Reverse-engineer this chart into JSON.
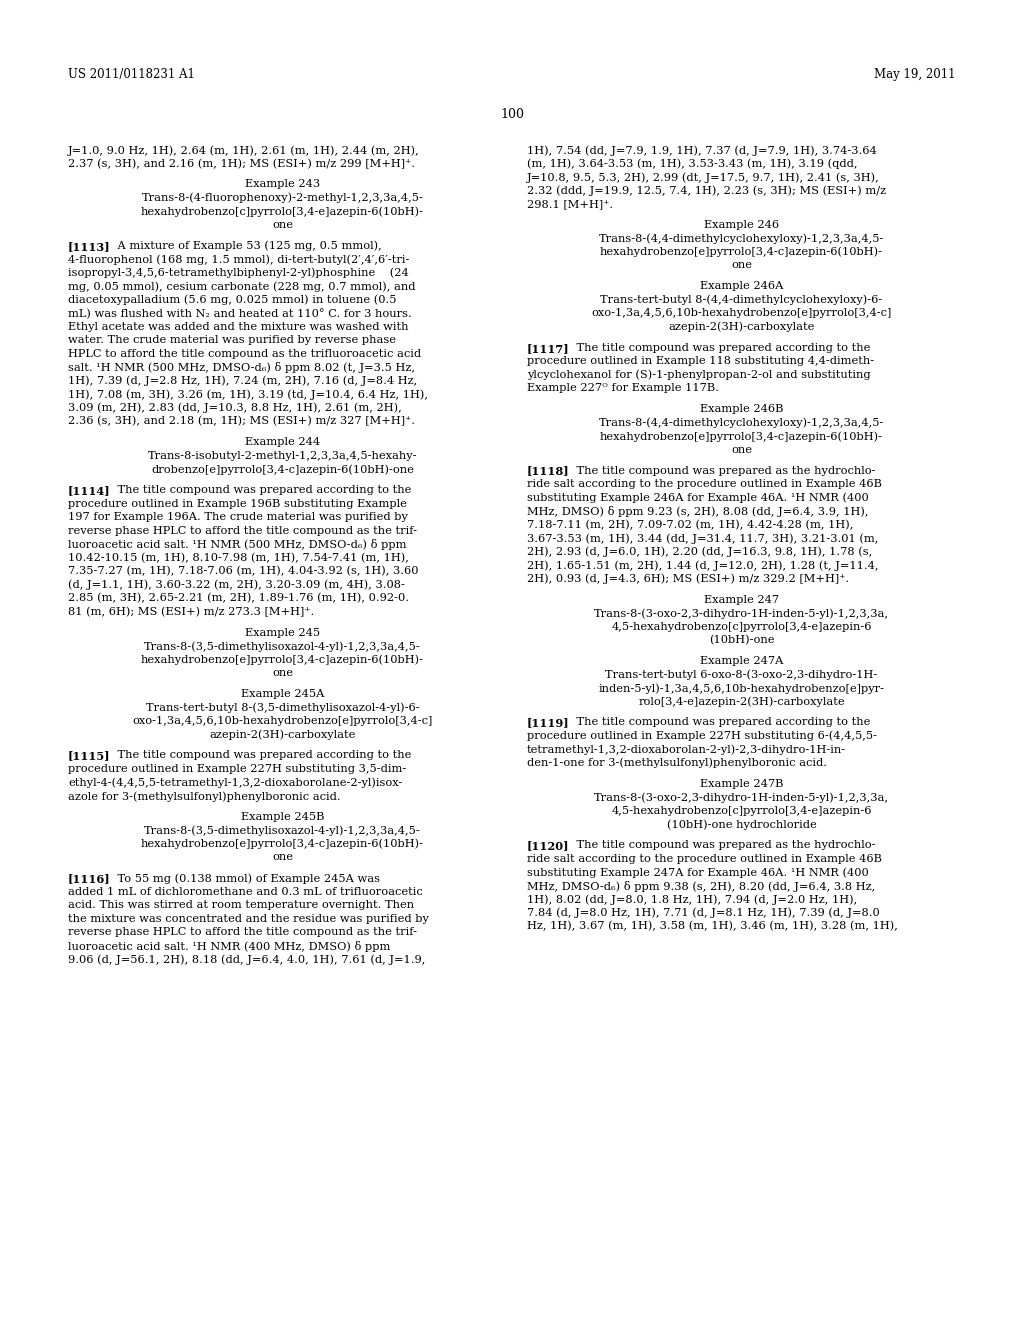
{
  "header_left": "US 2011/0118231 A1",
  "header_right": "May 19, 2011",
  "page_number": "100",
  "background_color": "#ffffff",
  "left_col_lines": [
    "J=1.0, 9.0 Hz, 1H), 2.64 (m, 1H), 2.61 (m, 1H), 2.44 (m, 2H),",
    "2.37 (s, 3H), and 2.16 (m, 1H); MS (ESI+) m/z 299 [M+H]⁺.",
    "",
    "~Example 243",
    "~Trans-8-(4-fluorophenoxy)-2-methyl-1,2,3,3a,4,5-",
    "~hexahydrobenzo[c]pyrrolo[3,4-e]azepin-6(10bH)-",
    "~one",
    "",
    "**[1113]**    A mixture of Example 53 (125 mg, 0.5 mmol),",
    "4-fluorophenol (168 mg, 1.5 mmol), di-tert-butyl(2′,4′,6′-tri-",
    "isopropyl-3,4,5,6-tetramethylbiphenyl-2-yl)phosphine    (24",
    "mg, 0.05 mmol), cesium carbonate (228 mg, 0.7 mmol), and",
    "diacetoxypalladium (5.6 mg, 0.025 mmol) in toluene (0.5",
    "mL) was flushed with N₂ and heated at 110° C. for 3 hours.",
    "Ethyl acetate was added and the mixture was washed with",
    "water. The crude material was purified by reverse phase",
    "HPLC to afford the title compound as the trifluoroacetic acid",
    "salt. ¹H NMR (500 MHz, DMSO-d₆) δ ppm 8.02 (t, J=3.5 Hz,",
    "1H), 7.39 (d, J=2.8 Hz, 1H), 7.24 (m, 2H), 7.16 (d, J=8.4 Hz,",
    "1H), 7.08 (m, 3H), 3.26 (m, 1H), 3.19 (td, J=10.4, 6.4 Hz, 1H),",
    "3.09 (m, 2H), 2.83 (dd, J=10.3, 8.8 Hz, 1H), 2.61 (m, 2H),",
    "2.36 (s, 3H), and 2.18 (m, 1H); MS (ESI+) m/z 327 [M+H]⁺.",
    "",
    "~Example 244",
    "~Trans-8-isobutyl-2-methyl-1,2,3,3a,4,5-hexahy-",
    "~drobenzo[e]pyrrolo[3,4-c]azepin-6(10bH)-one",
    "",
    "**[1114]**    The title compound was prepared according to the",
    "procedure outlined in Example 196B substituting Example",
    "197 for Example 196A. The crude material was purified by",
    "reverse phase HPLC to afford the title compound as the trif-",
    "luoroacetic acid salt. ¹H NMR (500 MHz, DMSO-d₆) δ ppm",
    "10.42-10.15 (m, 1H), 8.10-7.98 (m, 1H), 7.54-7.41 (m, 1H),",
    "7.35-7.27 (m, 1H), 7.18-7.06 (m, 1H), 4.04-3.92 (s, 1H), 3.60",
    "(d, J=1.1, 1H), 3.60-3.22 (m, 2H), 3.20-3.09 (m, 4H), 3.08-",
    "2.85 (m, 3H), 2.65-2.21 (m, 2H), 1.89-1.76 (m, 1H), 0.92-0.",
    "81 (m, 6H); MS (ESI+) m/z 273.3 [M+H]⁺.",
    "",
    "~Example 245",
    "~Trans-8-(3,5-dimethylisoxazol-4-yl)-1,2,3,3a,4,5-",
    "~hexahydrobenzo[e]pyrrolo[3,4-c]azepin-6(10bH)-",
    "~one",
    "",
    "~Example 245A",
    "~Trans-tert-butyl 8-(3,5-dimethylisoxazol-4-yl)-6-",
    "~oxo-1,3a,4,5,6,10b-hexahydrobenzo[e]pyrrolo[3,4-c]",
    "~azepin-2(3H)-carboxylate",
    "",
    "**[1115]**    The title compound was prepared according to the",
    "procedure outlined in Example 227H substituting 3,5-dim-",
    "ethyl-4-(4,4,5,5-tetramethyl-1,3,2-dioxaborolane-2-yl)isox-",
    "azole for 3-(methylsulfonyl)phenylboronic acid.",
    "",
    "~Example 245B",
    "~Trans-8-(3,5-dimethylisoxazol-4-yl)-1,2,3,3a,4,5-",
    "~hexahydrobenzo[e]pyrrolo[3,4-c]azepin-6(10bH)-",
    "~one",
    "",
    "**[1116]**    To 55 mg (0.138 mmol) of Example 245A was",
    "added 1 mL of dichloromethane and 0.3 mL of trifluoroacetic",
    "acid. This was stirred at room temperature overnight. Then",
    "the mixture was concentrated and the residue was purified by",
    "reverse phase HPLC to afford the title compound as the trif-",
    "luoroacetic acid salt. ¹H NMR (400 MHz, DMSO) δ ppm",
    "9.06 (d, J=56.1, 2H), 8.18 (dd, J=6.4, 4.0, 1H), 7.61 (d, J=1.9,"
  ],
  "right_col_lines": [
    "1H), 7.54 (dd, J=7.9, 1.9, 1H), 7.37 (d, J=7.9, 1H), 3.74-3.64",
    "(m, 1H), 3.64-3.53 (m, 1H), 3.53-3.43 (m, 1H), 3.19 (qdd,",
    "J=10.8, 9.5, 5.3, 2H), 2.99 (dt, J=17.5, 9.7, 1H), 2.41 (s, 3H),",
    "2.32 (ddd, J=19.9, 12.5, 7.4, 1H), 2.23 (s, 3H); MS (ESI+) m/z",
    "298.1 [M+H]⁺.",
    "",
    "~Example 246",
    "~Trans-8-(4,4-dimethylcyclohexyloxy)-1,2,3,3a,4,5-",
    "~hexahydrobenzo[e]pyrrolo[3,4-c]azepin-6(10bH)-",
    "~one",
    "",
    "~Example 246A",
    "~Trans-tert-butyl 8-(4,4-dimethylcyclohexyloxy)-6-",
    "~oxo-1,3a,4,5,6,10b-hexahydrobenzo[e]pyrrolo[3,4-c]",
    "~azepin-2(3H)-carboxylate",
    "",
    "**[1117]**    The title compound was prepared according to the",
    "procedure outlined in Example 118 substituting 4,4-dimeth-",
    "ylcyclohexanol for (S)-1-phenylpropan-2-ol and substituting",
    "Example 227ᴼ for Example 117B.",
    "",
    "~Example 246B",
    "~Trans-8-(4,4-dimethylcyclohexyloxy)-1,2,3,3a,4,5-",
    "~hexahydrobenzo[e]pyrrolo[3,4-c]azepin-6(10bH)-",
    "~one",
    "",
    "**[1118]**    The title compound was prepared as the hydrochlo-",
    "ride salt according to the procedure outlined in Example 46B",
    "substituting Example 246A for Example 46A. ¹H NMR (400",
    "MHz, DMSO) δ ppm 9.23 (s, 2H), 8.08 (dd, J=6.4, 3.9, 1H),",
    "7.18-7.11 (m, 2H), 7.09-7.02 (m, 1H), 4.42-4.28 (m, 1H),",
    "3.67-3.53 (m, 1H), 3.44 (dd, J=31.4, 11.7, 3H), 3.21-3.01 (m,",
    "2H), 2.93 (d, J=6.0, 1H), 2.20 (dd, J=16.3, 9.8, 1H), 1.78 (s,",
    "2H), 1.65-1.51 (m, 2H), 1.44 (d, J=12.0, 2H), 1.28 (t, J=11.4,",
    "2H), 0.93 (d, J=4.3, 6H); MS (ESI+) m/z 329.2 [M+H]⁺.",
    "",
    "~Example 247",
    "~Trans-8-(3-oxo-2,3-dihydro-1H-inden-5-yl)-1,2,3,3a,",
    "~4,5-hexahydrobenzo[c]pyrrolo[3,4-e]azepin-6",
    "~(10bH)-one",
    "",
    "~Example 247A",
    "~Trans-tert-butyl 6-oxo-8-(3-oxo-2,3-dihydro-1H-",
    "~inden-5-yl)-1,3a,4,5,6,10b-hexahydrobenzo[e]pyr-",
    "~rolo[3,4-e]azepin-2(3H)-carboxylate",
    "",
    "**[1119]**    The title compound was prepared according to the",
    "procedure outlined in Example 227H substituting 6-(4,4,5,5-",
    "tetramethyl-1,3,2-dioxaborolan-2-yl)-2,3-dihydro-1H-in-",
    "den-1-one for 3-(methylsulfonyl)phenylboronic acid.",
    "",
    "~Example 247B",
    "~Trans-8-(3-oxo-2,3-dihydro-1H-inden-5-yl)-1,2,3,3a,",
    "~4,5-hexahydrobenzo[c]pyrrolo[3,4-e]azepin-6",
    "~(10bH)-one hydrochloride",
    "",
    "**[1120]**    The title compound was prepared as the hydrochlo-",
    "ride salt according to the procedure outlined in Example 46B",
    "substituting Example 247A for Example 46A. ¹H NMR (400",
    "MHz, DMSO-d₆) δ ppm 9.38 (s, 2H), 8.20 (dd, J=6.4, 3.8 Hz,",
    "1H), 8.02 (dd, J=8.0, 1.8 Hz, 1H), 7.94 (d, J=2.0 Hz, 1H),",
    "7.84 (d, J=8.0 Hz, 1H), 7.71 (d, J=8.1 Hz, 1H), 7.39 (d, J=8.0",
    "Hz, 1H), 3.67 (m, 1H), 3.58 (m, 1H), 3.46 (m, 1H), 3.28 (m, 1H),"
  ]
}
